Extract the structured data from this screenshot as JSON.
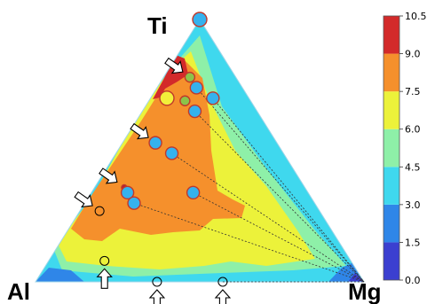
{
  "chart_data": {
    "type": "heatmap",
    "subtype": "ternary contour map",
    "vertices": {
      "top": "Ti",
      "left": "Al",
      "right": "Mg"
    },
    "colorbar": {
      "ticks": [
        "0.0",
        "1.5",
        "3.0",
        "4.5",
        "6.0",
        "7.5",
        "9.0",
        "10.5"
      ],
      "min": 0.0,
      "max": 10.5,
      "bands": [
        {
          "from": 0.0,
          "to": 1.5,
          "color": "#3b3fd0"
        },
        {
          "from": 1.5,
          "to": 3.0,
          "color": "#2f86e8"
        },
        {
          "from": 3.0,
          "to": 4.5,
          "color": "#3fd8ee"
        },
        {
          "from": 4.5,
          "to": 6.0,
          "color": "#8ef0a8"
        },
        {
          "from": 6.0,
          "to": 7.5,
          "color": "#ecf23a"
        },
        {
          "from": 7.5,
          "to": 9.0,
          "color": "#f5902c"
        },
        {
          "from": 9.0,
          "to": 10.5,
          "color": "#d32a2a"
        }
      ]
    },
    "regions": [
      {
        "level": "3.0-4.5",
        "color": "#3fd8ee",
        "note": "outer rim near all edges"
      },
      {
        "level": "4.5-6.0",
        "color": "#8ef0a8",
        "note": "band along Ti-Mg edge"
      },
      {
        "level": "6.0-7.5",
        "color": "#ecf23a",
        "note": "right and bottom interior"
      },
      {
        "level": "7.5-9.0",
        "color": "#f5902c",
        "note": "upper-left interior near Ti-Al edge"
      },
      {
        "level": "9.0-10.5",
        "color": "#d32a2a",
        "note": "small region below Ti"
      },
      {
        "level": "0.0-3.0",
        "color": "#2f86e8",
        "note": "near Al and Mg corners"
      }
    ],
    "points": [
      {
        "Ti": 1.0,
        "Al": 0.0,
        "Mg": 0.0,
        "fill": "#35b2ee",
        "size": "large"
      },
      {
        "Ti": 0.78,
        "Al": 0.14,
        "Mg": 0.08,
        "fill": "#8bc34a",
        "size": "small"
      },
      {
        "Ti": 0.74,
        "Al": 0.14,
        "Mg": 0.12,
        "fill": "#35b2ee",
        "size": "medium"
      },
      {
        "Ti": 0.7,
        "Al": 0.25,
        "Mg": 0.05,
        "fill": "#f2ef3a",
        "size": "large"
      },
      {
        "Ti": 0.69,
        "Al": 0.2,
        "Mg": 0.11,
        "fill": "#8bc34a",
        "size": "small"
      },
      {
        "Ti": 0.7,
        "Al": 0.11,
        "Mg": 0.19,
        "fill": "#35b2ee",
        "size": "medium"
      },
      {
        "Ti": 0.65,
        "Al": 0.19,
        "Mg": 0.16,
        "fill": "#35b2ee",
        "size": "medium"
      },
      {
        "Ti": 0.53,
        "Al": 0.37,
        "Mg": 0.1,
        "fill": "#35b2ee",
        "size": "medium"
      },
      {
        "Ti": 0.49,
        "Al": 0.34,
        "Mg": 0.17,
        "fill": "#35b2ee",
        "size": "medium"
      },
      {
        "Ti": 0.36,
        "Al": 0.55,
        "Mg": 0.09,
        "fill": "#b51e36",
        "size": "tiny"
      },
      {
        "Ti": 0.34,
        "Al": 0.55,
        "Mg": 0.11,
        "fill": "#35b2ee",
        "size": "medium"
      },
      {
        "Ti": 0.3,
        "Al": 0.55,
        "Mg": 0.15,
        "fill": "#35b2ee",
        "size": "medium"
      },
      {
        "Ti": 0.34,
        "Al": 0.35,
        "Mg": 0.31,
        "fill": "#35b2ee",
        "size": "medium"
      },
      {
        "Ti": 0.27,
        "Al": 0.67,
        "Mg": 0.06,
        "fill": "none",
        "size": "open"
      },
      {
        "Ti": 0.08,
        "Al": 0.75,
        "Mg": 0.17,
        "fill": "none",
        "size": "open"
      },
      {
        "Ti": 0.0,
        "Al": 0.63,
        "Mg": 0.37,
        "fill": "none",
        "size": "open"
      },
      {
        "Ti": 0.0,
        "Al": 0.43,
        "Mg": 0.57,
        "fill": "none",
        "size": "open"
      }
    ],
    "tie_lines": [
      {
        "from": [
          0.74,
          0.14,
          0.12
        ],
        "to": [
          0.0,
          0.0,
          1.0
        ]
      },
      {
        "from": [
          0.7,
          0.11,
          0.19
        ],
        "to": [
          0.0,
          0.0,
          1.0
        ]
      },
      {
        "from": [
          0.65,
          0.19,
          0.16
        ],
        "to": [
          0.0,
          0.0,
          1.0
        ]
      },
      {
        "from": [
          0.49,
          0.34,
          0.17
        ],
        "to": [
          0.0,
          0.0,
          1.0
        ]
      },
      {
        "from": [
          0.3,
          0.55,
          0.15
        ],
        "to": [
          0.0,
          0.0,
          1.0
        ]
      },
      {
        "from": [
          0.34,
          0.35,
          0.31
        ],
        "to": [
          0.0,
          0.0,
          1.0
        ]
      },
      {
        "from": [
          0.0,
          0.43,
          0.57
        ],
        "to": [
          0.0,
          0.0,
          1.0
        ]
      }
    ],
    "arrows": [
      {
        "target": [
          0.78,
          0.14,
          0.08
        ],
        "direction": "down-right"
      },
      {
        "target": [
          0.53,
          0.37,
          0.1
        ],
        "direction": "down-right"
      },
      {
        "target": [
          0.36,
          0.55,
          0.09
        ],
        "direction": "down-right"
      },
      {
        "target": [
          0.27,
          0.67,
          0.06
        ],
        "direction": "down-right"
      },
      {
        "target": [
          0.08,
          0.75,
          0.17
        ],
        "direction": "up"
      },
      {
        "target": [
          0.0,
          0.63,
          0.37
        ],
        "direction": "up"
      },
      {
        "target": [
          0.0,
          0.43,
          0.57
        ],
        "direction": "up"
      }
    ]
  }
}
